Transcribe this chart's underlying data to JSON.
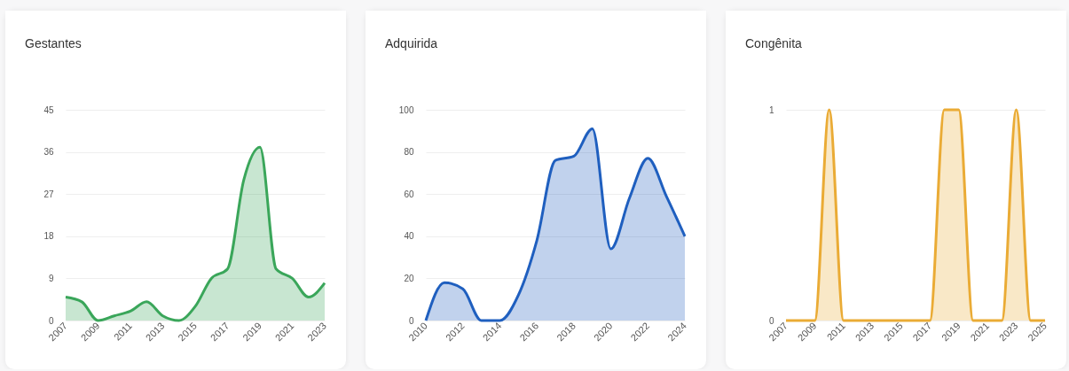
{
  "chart_data": [
    {
      "type": "area",
      "title": "Gestantes",
      "x": [
        2007,
        2008,
        2009,
        2010,
        2011,
        2012,
        2013,
        2014,
        2015,
        2016,
        2017,
        2018,
        2019,
        2020,
        2021,
        2022,
        2023
      ],
      "series": [
        {
          "color": "#3aa65a",
          "values": [
            5,
            4,
            0,
            1,
            2,
            4,
            1,
            0,
            3,
            9,
            11,
            30,
            37,
            11,
            9,
            5,
            8
          ]
        }
      ],
      "xlim": [
        2007,
        2023
      ],
      "xticks": [
        2007,
        2009,
        2011,
        2013,
        2015,
        2017,
        2019,
        2021,
        2023
      ],
      "ylim": [
        0,
        45
      ],
      "yticks": [
        0,
        9,
        18,
        27,
        36,
        45
      ],
      "grid": "y"
    },
    {
      "type": "area",
      "title": "Adquirida",
      "x": [
        2010,
        2011,
        2012,
        2013,
        2014,
        2015,
        2016,
        2017,
        2018,
        2019,
        2020,
        2021,
        2022,
        2023,
        2024
      ],
      "series": [
        {
          "color": "#1f5fbf",
          "values": [
            0,
            18,
            15,
            0,
            0,
            12,
            38,
            76,
            78,
            91,
            34,
            58,
            77,
            59,
            40
          ]
        }
      ],
      "xlim": [
        2010,
        2024
      ],
      "xticks": [
        2010,
        2012,
        2014,
        2016,
        2018,
        2020,
        2022,
        2024
      ],
      "ylim": [
        0,
        100
      ],
      "yticks": [
        0,
        20,
        40,
        60,
        80,
        100
      ],
      "grid": "y"
    },
    {
      "type": "area",
      "title": "Congênita",
      "x": [
        2007,
        2008,
        2009,
        2010,
        2011,
        2012,
        2013,
        2014,
        2015,
        2016,
        2017,
        2018,
        2019,
        2020,
        2021,
        2022,
        2023,
        2024,
        2025
      ],
      "series": [
        {
          "color": "#eaab35",
          "values": [
            0,
            0,
            0,
            1,
            0,
            0,
            0,
            0,
            0,
            0,
            0,
            1,
            1,
            0,
            0,
            0,
            1,
            0,
            0
          ]
        }
      ],
      "xlim": [
        2007,
        2025
      ],
      "xticks": [
        2007,
        2009,
        2011,
        2013,
        2015,
        2017,
        2019,
        2021,
        2023,
        2025
      ],
      "ylim": [
        0,
        1
      ],
      "yticks": [
        0,
        1
      ],
      "grid": "y"
    }
  ]
}
